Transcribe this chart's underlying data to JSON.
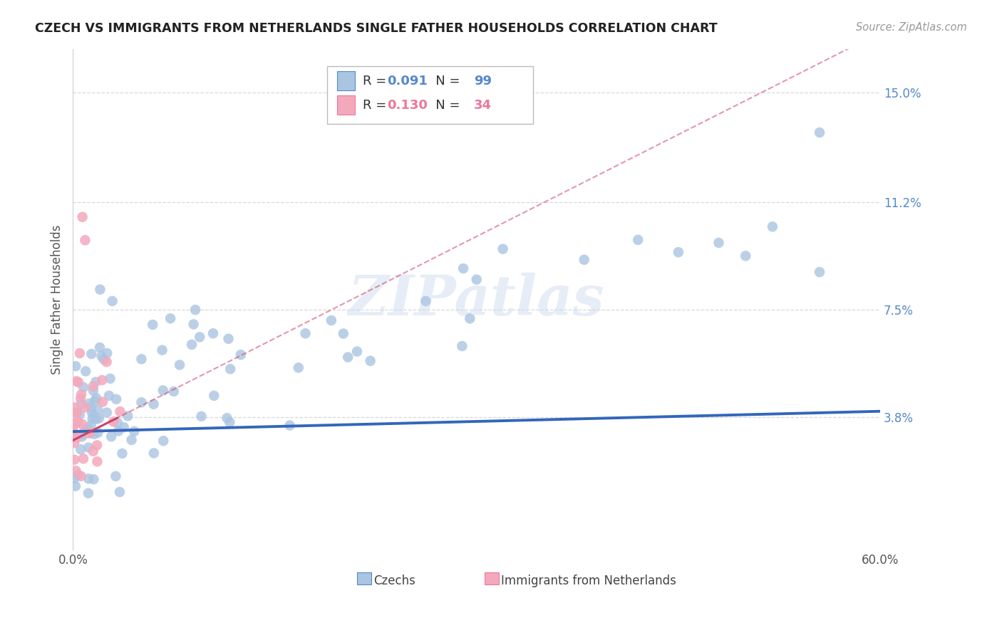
{
  "title": "CZECH VS IMMIGRANTS FROM NETHERLANDS SINGLE FATHER HOUSEHOLDS CORRELATION CHART",
  "source": "Source: ZipAtlas.com",
  "ylabel": "Single Father Households",
  "xlim": [
    0.0,
    0.6
  ],
  "ylim": [
    -0.008,
    0.165
  ],
  "xtick_vals": [
    0.0,
    0.1,
    0.2,
    0.3,
    0.4,
    0.5,
    0.6
  ],
  "xtick_labels": [
    "0.0%",
    "",
    "",
    "",
    "",
    "",
    "60.0%"
  ],
  "ytick_vals": [
    0.038,
    0.075,
    0.112,
    0.15
  ],
  "ytick_labels": [
    "3.8%",
    "7.5%",
    "11.2%",
    "15.0%"
  ],
  "r1": "0.091",
  "n1": "99",
  "r2": "0.130",
  "n2": "34",
  "color_blue": "#aac5e2",
  "color_pink": "#f4a8bc",
  "color_blue_text": "#5588cc",
  "color_pink_text": "#ee7799",
  "trend_blue_color": "#3366bb",
  "trend_pink_color": "#cc4466",
  "legend1_label": "Czechs",
  "legend2_label": "Immigrants from Netherlands",
  "watermark": "ZIPatlas"
}
